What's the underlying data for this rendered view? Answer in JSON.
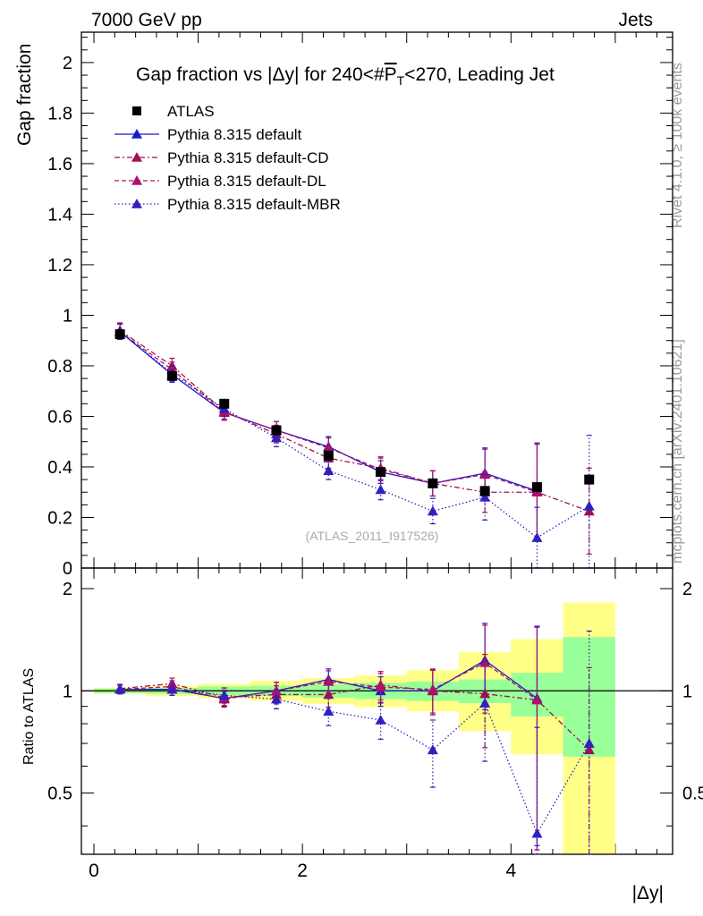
{
  "header": {
    "energy_label": "7000 GeV pp",
    "process_label": "Jets",
    "rivet_note": "Rivet 4.1.0, ≥ 100k events",
    "mcplots_note": "mcplots.cern.ch [arXiv:2401.10621]"
  },
  "colors": {
    "data": "#000000",
    "default": "#1a1acc",
    "cd": "#a01050",
    "dl": "#b0106a",
    "mbr": "#3020c0",
    "band_inner": "#99ff99",
    "band_outer": "#ffff88"
  },
  "chart_data": [
    {
      "type": "scatter",
      "title": "Gap fraction vs |Δy| for 240<#P̅T<270, Leading Jet",
      "title_parts": {
        "prefix": "Gap fraction vs |Δy| for 240<#",
        "pbar": "P",
        "sub": "T",
        "suffix": "<270, Leading Jet"
      },
      "ylabel": "Gap fraction",
      "watermark": "(ATLAS_2011_I917526)",
      "xlim": [
        -0.12,
        5.55
      ],
      "ylim": [
        0,
        2.12
      ],
      "yticks": [
        0,
        0.2,
        0.4,
        0.6,
        0.8,
        1,
        1.2,
        1.4,
        1.6,
        1.8,
        2
      ],
      "ytick_labels": [
        "0",
        "0.2",
        "0.4",
        "0.6",
        "0.8",
        "1",
        "1.2",
        "1.4",
        "1.6",
        "1.8",
        "2"
      ],
      "x": [
        0.25,
        0.75,
        1.25,
        1.75,
        2.25,
        2.75,
        3.25,
        3.75,
        4.25,
        4.75
      ],
      "legend": [
        {
          "key": "data",
          "label": "ATLAS",
          "marker": "square",
          "dash": ""
        },
        {
          "key": "default",
          "label": "Pythia 8.315 default",
          "marker": "triangle",
          "dash": ""
        },
        {
          "key": "cd",
          "label": "Pythia 8.315 default-CD",
          "marker": "triangle",
          "dash": "6,3,2,3"
        },
        {
          "key": "dl",
          "label": "Pythia 8.315 default-DL",
          "marker": "triangle",
          "dash": "5,3"
        },
        {
          "key": "mbr",
          "label": "Pythia 8.315 default-MBR",
          "marker": "triangle",
          "dash": "1.5,2.5"
        }
      ],
      "series": [
        {
          "key": "data",
          "name": "ATLAS",
          "values": [
            0.925,
            0.76,
            0.65,
            0.545,
            0.445,
            0.38,
            0.335,
            0.305,
            0.32,
            0.35
          ],
          "errors": [
            0.015,
            0.015,
            0.02,
            0.02,
            0.02,
            0.02,
            0.02,
            0.02,
            0.02,
            0.02
          ]
        },
        {
          "key": "default",
          "name": "Pythia 8.315 default",
          "values": [
            0.935,
            0.765,
            0.615,
            0.545,
            0.48,
            0.38,
            0.335,
            0.375,
            0.305,
            null
          ],
          "errors": [
            0.03,
            0.03,
            0.03,
            0.035,
            0.04,
            0.045,
            0.05,
            0.1,
            0.19,
            null
          ]
        },
        {
          "key": "cd",
          "name": "Pythia 8.315 default-CD",
          "values": [
            0.94,
            0.8,
            0.62,
            0.53,
            0.435,
            0.395,
            0.335,
            0.3,
            0.3,
            0.225
          ],
          "errors": [
            0.03,
            0.03,
            0.03,
            0.035,
            0.04,
            0.045,
            0.05,
            0.08,
            0.19,
            0.17
          ]
        },
        {
          "key": "dl",
          "name": "Pythia 8.315 default-DL",
          "values": [
            0.935,
            0.785,
            0.615,
            0.545,
            0.475,
            0.39,
            0.335,
            0.37,
            0.3,
            null
          ],
          "errors": [
            0.03,
            0.03,
            0.03,
            0.035,
            0.04,
            0.045,
            0.05,
            0.1,
            0.19,
            null
          ]
        },
        {
          "key": "mbr",
          "name": "Pythia 8.315 default-MBR",
          "values": [
            0.935,
            0.77,
            0.63,
            0.515,
            0.385,
            0.31,
            0.225,
            0.28,
            0.12,
            0.245
          ],
          "errors": [
            0.03,
            0.03,
            0.03,
            0.035,
            0.035,
            0.04,
            0.05,
            0.09,
            0.12,
            0.28
          ]
        }
      ]
    },
    {
      "type": "scatter",
      "ylabel": "Ratio to ATLAS",
      "xlabel": "|Δy|",
      "xlim": [
        -0.12,
        5.55
      ],
      "ylim": [
        0.33,
        2.3
      ],
      "xticks": [
        0,
        2,
        4
      ],
      "xtick_labels": [
        "0",
        "2",
        "4"
      ],
      "yticks": [
        0.5,
        1,
        2
      ],
      "ytick_labels": [
        "0.5",
        "1",
        "2"
      ],
      "reference": 1,
      "band_edges": [
        0,
        0.5,
        1,
        1.5,
        2,
        2.5,
        3,
        3.5,
        4,
        4.5,
        5
      ],
      "band_inner": [
        [
          0.985,
          1.015
        ],
        [
          0.98,
          1.02
        ],
        [
          0.97,
          1.03
        ],
        [
          0.965,
          1.035
        ],
        [
          0.955,
          1.045
        ],
        [
          0.945,
          1.055
        ],
        [
          0.935,
          1.065
        ],
        [
          0.92,
          1.08
        ],
        [
          0.84,
          1.13
        ],
        [
          0.64,
          1.44
        ]
      ],
      "band_outer": [
        [
          0.98,
          1.02
        ],
        [
          0.965,
          1.035
        ],
        [
          0.95,
          1.05
        ],
        [
          0.935,
          1.07
        ],
        [
          0.915,
          1.09
        ],
        [
          0.895,
          1.11
        ],
        [
          0.87,
          1.15
        ],
        [
          0.76,
          1.3
        ],
        [
          0.65,
          1.42
        ],
        [
          0.33,
          1.82
        ]
      ],
      "x": [
        0.25,
        0.75,
        1.25,
        1.75,
        2.25,
        2.75,
        3.25,
        3.75,
        4.25,
        4.75
      ],
      "series": [
        {
          "key": "default",
          "name": "Pythia 8.315 default",
          "values": [
            1.01,
            1.01,
            0.95,
            1.0,
            1.08,
            1.0,
            1.0,
            1.23,
            0.95,
            null
          ],
          "errors": [
            0.03,
            0.04,
            0.05,
            0.06,
            0.08,
            0.1,
            0.15,
            0.35,
            0.6,
            null
          ]
        },
        {
          "key": "cd",
          "name": "Pythia 8.315 default-CD",
          "values": [
            1.015,
            1.05,
            0.955,
            0.975,
            0.975,
            1.04,
            1.0,
            0.98,
            0.94,
            0.67
          ],
          "errors": [
            0.03,
            0.04,
            0.05,
            0.06,
            0.08,
            0.1,
            0.15,
            0.3,
            0.6,
            0.5
          ]
        },
        {
          "key": "dl",
          "name": "Pythia 8.315 default-DL",
          "values": [
            1.01,
            1.03,
            0.945,
            1.0,
            1.065,
            1.025,
            1.01,
            1.21,
            0.94,
            null
          ],
          "errors": [
            0.03,
            0.04,
            0.05,
            0.06,
            0.08,
            0.1,
            0.15,
            0.35,
            0.6,
            null
          ]
        },
        {
          "key": "mbr",
          "name": "Pythia 8.315 default-MBR",
          "values": [
            1.01,
            1.01,
            0.97,
            0.945,
            0.87,
            0.82,
            0.67,
            0.92,
            0.38,
            0.7
          ],
          "errors": [
            0.03,
            0.04,
            0.05,
            0.06,
            0.08,
            0.1,
            0.15,
            0.3,
            0.4,
            0.8
          ]
        }
      ]
    }
  ]
}
